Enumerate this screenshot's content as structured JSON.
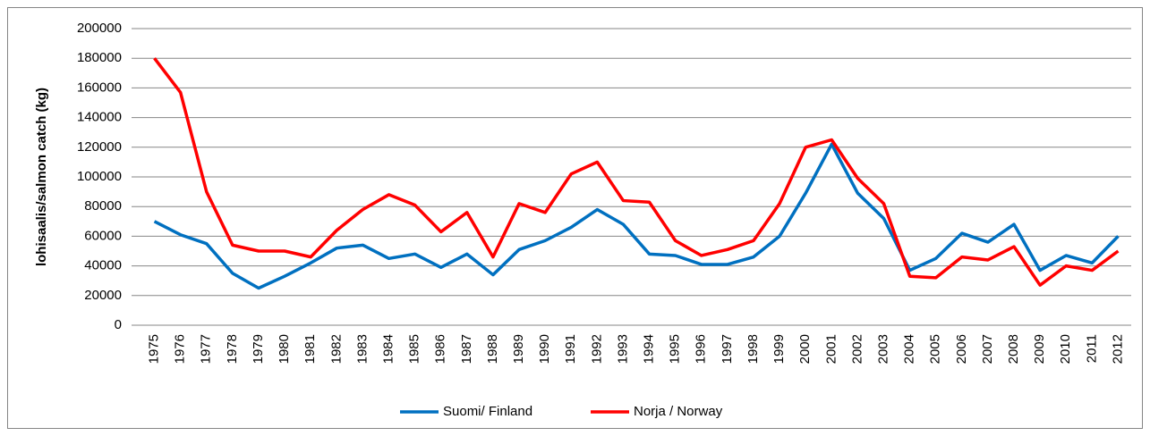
{
  "chart_data": {
    "type": "line",
    "y_label": "lohisaalis/salmon  catch  (kg)",
    "categories": [
      "1975",
      "1976",
      "1977",
      "1978",
      "1979",
      "1980",
      "1981",
      "1982",
      "1983",
      "1984",
      "1985",
      "1986",
      "1987",
      "1988",
      "1989",
      "1990",
      "1991",
      "1992",
      "1993",
      "1994",
      "1995",
      "1996",
      "1997",
      "1998",
      "1999",
      "2000",
      "2001",
      "2002",
      "2003",
      "2004",
      "2005",
      "2006",
      "2007",
      "2008",
      "2009",
      "2010",
      "2011",
      "2012"
    ],
    "series": [
      {
        "name": "Suomi/ Finland",
        "color": "#0070c0",
        "values": [
          70000,
          61000,
          55000,
          35000,
          25000,
          33000,
          42000,
          52000,
          54000,
          45000,
          48000,
          39000,
          48000,
          34000,
          51000,
          57000,
          66000,
          78000,
          68000,
          48000,
          47000,
          41000,
          41000,
          46000,
          60000,
          89000,
          122000,
          89000,
          72000,
          37000,
          45000,
          62000,
          56000,
          68000,
          37000,
          47000,
          42000,
          60000
        ]
      },
      {
        "name": "Norja / Norway",
        "color": "#ff0000",
        "values": [
          180000,
          157000,
          90000,
          54000,
          50000,
          50000,
          46000,
          64000,
          78000,
          88000,
          81000,
          63000,
          76000,
          46000,
          82000,
          76000,
          102000,
          110000,
          84000,
          83000,
          57000,
          47000,
          51000,
          57000,
          82000,
          120000,
          125000,
          99000,
          82000,
          33000,
          32000,
          46000,
          44000,
          53000,
          27000,
          40000,
          37000,
          50000
        ]
      }
    ],
    "ylim": [
      0,
      200000
    ],
    "yticks": [
      0,
      20000,
      40000,
      60000,
      80000,
      100000,
      120000,
      140000,
      160000,
      180000,
      200000
    ],
    "grid": true,
    "legend": "bottom"
  }
}
